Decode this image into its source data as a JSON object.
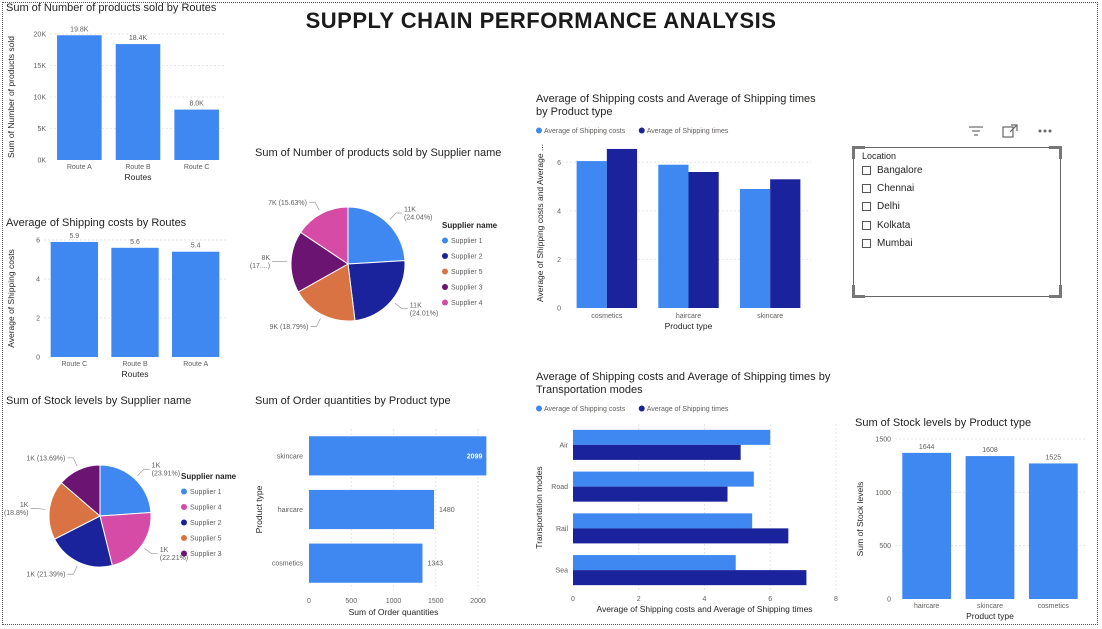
{
  "dashboard": {
    "title": "SUPPLY  CHAIN PERFORMANCE ANALYSIS"
  },
  "colors": {
    "light": "#3F88F2",
    "dark": "#1A239B",
    "s1": "#3F88F2",
    "s2": "#1A239B",
    "s3": "#6B1472",
    "s4": "#D64BA6",
    "s5": "#DA7343"
  },
  "slicer": {
    "header": "Location",
    "items": [
      "Bangalore",
      "Chennai",
      "Delhi",
      "Kolkata",
      "Mumbai"
    ],
    "toolbar_icons": [
      "filter-icon",
      "focus-mode-icon",
      "more-options-icon"
    ]
  },
  "chart_data": [
    {
      "id": "products_by_routes",
      "type": "bar",
      "title": "Sum of Number of products sold by Routes",
      "xlabel": "Routes",
      "ylabel": "Sum of Number of products sold",
      "categories": [
        "Route A",
        "Route B",
        "Route C"
      ],
      "values": [
        19800,
        18400,
        8000
      ],
      "data_labels": [
        "19.8K",
        "18.4K",
        "8.0K"
      ],
      "yticks": [
        "0K",
        "5K",
        "10K",
        "15K",
        "20K"
      ],
      "ylim": [
        0,
        20000
      ]
    },
    {
      "id": "shipping_cost_by_routes",
      "type": "bar",
      "title": "Average of Shipping costs by Routes",
      "xlabel": "Routes",
      "ylabel": "Average of Shipping costs",
      "categories": [
        "Route C",
        "Route B",
        "Route A"
      ],
      "values": [
        5.9,
        5.6,
        5.4
      ],
      "data_labels": [
        "5.9",
        "5.6",
        "5.4"
      ],
      "yticks": [
        "0",
        "2",
        "4",
        "6"
      ],
      "ylim": [
        0,
        6
      ]
    },
    {
      "id": "products_by_supplier",
      "type": "pie",
      "title": "Sum of Number of products sold by Supplier name",
      "legend_title": "Supplier name",
      "labels": [
        "Supplier 1",
        "Supplier 2",
        "Supplier 5",
        "Supplier 3",
        "Supplier 4"
      ],
      "values": [
        24.04,
        24.01,
        18.79,
        17.53,
        15.63
      ],
      "data_labels": [
        [
          "11K",
          "(24.04%)"
        ],
        [
          "11K",
          "(24.01%)"
        ],
        [
          "9K (18.79%)"
        ],
        [
          "8K",
          "(17....)"
        ],
        [
          "7K (15.63%)"
        ]
      ]
    },
    {
      "id": "stock_by_supplier",
      "type": "pie",
      "title": "Sum of Stock levels by Supplier name",
      "legend_title": "Supplier name",
      "labels": [
        "Supplier 1",
        "Supplier 4",
        "Supplier 2",
        "Supplier 5",
        "Supplier 3"
      ],
      "values": [
        23.91,
        22.21,
        21.39,
        18.8,
        13.69
      ],
      "data_labels": [
        [
          "1K",
          "(23.91%)"
        ],
        [
          "1K",
          "(22.21%)"
        ],
        [
          "1K (21.39%)"
        ],
        [
          "1K",
          "(18.8%)"
        ],
        [
          "1K (13.69%)"
        ]
      ]
    },
    {
      "id": "order_qty_by_product",
      "type": "bar",
      "title": "Sum of Order quantities by Product type",
      "xlabel": "Sum of Order quantities",
      "ylabel": "Product type",
      "categories": [
        "skincare",
        "haircare",
        "cosmetics"
      ],
      "values": [
        2099,
        1480,
        1343
      ],
      "data_labels": [
        "2099",
        "1480",
        "1343"
      ],
      "xticks": [
        "0",
        "500",
        "1000",
        "1500",
        "2000"
      ],
      "xlim": [
        0,
        2000
      ]
    },
    {
      "id": "ship_by_product",
      "type": "bar",
      "title": "Average of Shipping costs and Average of Shipping times by Product type",
      "xlabel": "Product type",
      "ylabel": "Average of Shipping costs and Average ...",
      "categories": [
        "cosmetics",
        "haircare",
        "skincare"
      ],
      "series": [
        {
          "name": "Average of Shipping costs",
          "values": [
            6.05,
            5.9,
            4.9
          ]
        },
        {
          "name": "Average of Shipping times",
          "values": [
            6.55,
            5.6,
            5.3
          ]
        }
      ],
      "yticks": [
        "0",
        "2",
        "4",
        "6"
      ],
      "ylim": [
        0,
        7
      ]
    },
    {
      "id": "ship_by_transport",
      "type": "bar",
      "title": "Average of Shipping costs and Average of Shipping times by Transportation modes",
      "xlabel": "Average of Shipping costs and Average of Shipping times",
      "ylabel": "Transportation modes",
      "categories": [
        "Air",
        "Road",
        "Rail",
        "Sea"
      ],
      "series": [
        {
          "name": "Average of Shipping costs",
          "values": [
            6.0,
            5.5,
            5.45,
            4.95
          ]
        },
        {
          "name": "Average of Shipping times",
          "values": [
            5.1,
            4.7,
            6.55,
            7.1
          ]
        }
      ],
      "xticks": [
        "0",
        "2",
        "4",
        "6",
        "8"
      ],
      "xlim": [
        0,
        8
      ]
    },
    {
      "id": "stock_by_product",
      "type": "bar",
      "title": "Sum of Stock levels by Product type",
      "xlabel": "Product type",
      "ylabel": "Sum of Stock levels",
      "categories": [
        "haircare",
        "skincare",
        "cosmetics"
      ],
      "values": [
        1644,
        1608,
        1525
      ],
      "data_labels": [
        "1644",
        "1608",
        "1525"
      ],
      "yticks": [
        "0",
        "500",
        "1000",
        "1500"
      ],
      "ylim": [
        0,
        1800
      ]
    }
  ]
}
